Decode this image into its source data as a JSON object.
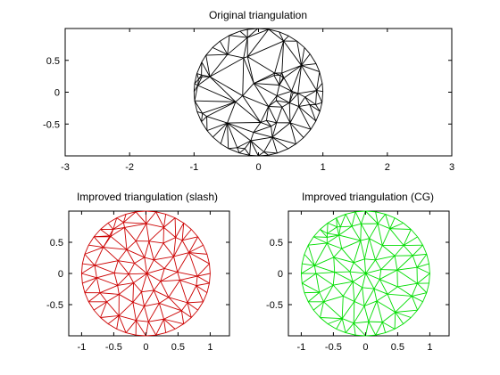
{
  "figure": {
    "background": "#ffffff"
  },
  "chart_data": [
    {
      "type": "mesh",
      "title": "Original triangulation",
      "xlabel": "",
      "ylabel": "",
      "xlim": [
        -3,
        3
      ],
      "ylim": [
        -1,
        1
      ],
      "xticks": [
        -3,
        -2,
        -1,
        0,
        1,
        2,
        3
      ],
      "xtick_labels": [
        "-3",
        "-2",
        "-1",
        "0",
        "1",
        "2",
        "3"
      ],
      "yticks": [
        0.5,
        0,
        -0.5
      ],
      "ytick_labels": [
        "0.5",
        "0",
        "-0.5"
      ],
      "color": "#000000",
      "mesh": {
        "shape": "unit disk",
        "boundary_points": 40,
        "interior_points": 48,
        "quality": "random"
      }
    },
    {
      "type": "mesh",
      "title": "Improved triangulation (slash)",
      "xlabel": "",
      "ylabel": "",
      "xlim": [
        -1.2,
        1.3
      ],
      "ylim": [
        -1,
        1
      ],
      "xticks": [
        -1,
        -0.5,
        0,
        0.5,
        1
      ],
      "xtick_labels": [
        "-1",
        "-0.5",
        "0",
        "0.5",
        "1"
      ],
      "yticks": [
        0.5,
        0,
        -0.5
      ],
      "ytick_labels": [
        "0.5",
        "0",
        "-0.5"
      ],
      "color": "#cc0000",
      "mesh": {
        "shape": "unit disk",
        "boundary_points": 40,
        "interior_points": 48,
        "quality": "improved"
      }
    },
    {
      "type": "mesh",
      "title": "Improved triangulation (CG)",
      "xlabel": "",
      "ylabel": "",
      "xlim": [
        -1.2,
        1.3
      ],
      "ylim": [
        -1,
        1
      ],
      "xticks": [
        -1,
        -0.5,
        0,
        0.5,
        1
      ],
      "xtick_labels": [
        "-1",
        "-0.5",
        "0",
        "0.5",
        "1"
      ],
      "yticks": [
        0.5,
        0,
        -0.5
      ],
      "ytick_labels": [
        "0.5",
        "0",
        "-0.5"
      ],
      "color": "#00dd00",
      "mesh": {
        "shape": "unit disk",
        "boundary_points": 40,
        "interior_points": 48,
        "quality": "improved"
      }
    }
  ]
}
